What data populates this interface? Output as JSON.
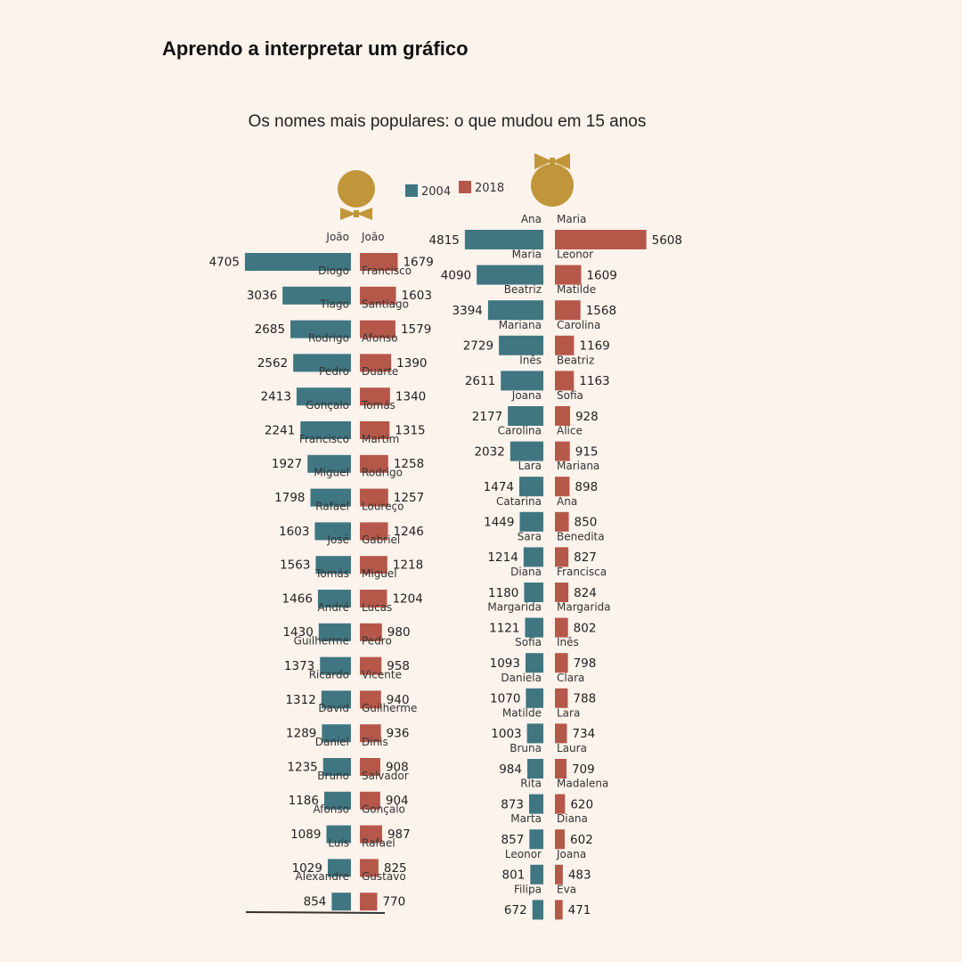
{
  "page": {
    "heading": "Aprendo a interpretar um gráfico",
    "subtitle": "Os nomes mais populares: o que mudou em 15 anos"
  },
  "colors": {
    "series_2004": "#3f7682",
    "series_2018": "#b5584a",
    "icon": "#c1953a",
    "background": "#fcf3ec"
  },
  "icons": {
    "boys": "boy-head-bowtie-icon",
    "girls": "girl-head-bow-icon"
  },
  "chart_data": [
    {
      "type": "bar",
      "orientation": "horizontal-back-to-back",
      "legend": [
        "2004",
        "2018"
      ],
      "legend_position": "top-center",
      "series": [
        {
          "name": "2004",
          "categories": [
            "João",
            "Diogo",
            "Tiago",
            "Rodrigo",
            "Pedro",
            "Gonçalo",
            "Francisco",
            "Miguel",
            "Rafael",
            "José",
            "Tomás",
            "André",
            "Guilherme",
            "Ricardo",
            "David",
            "Daniel",
            "Bruno",
            "Afonso",
            "Luís",
            "Alexandre"
          ],
          "values": [
            4705,
            3036,
            2685,
            2562,
            2413,
            2241,
            1927,
            1798,
            1603,
            1563,
            1466,
            1430,
            1373,
            1312,
            1289,
            1235,
            1186,
            1089,
            1029,
            854
          ]
        },
        {
          "name": "2018",
          "categories": [
            "João",
            "Francisco",
            "Santiago",
            "Afonso",
            "Duarte",
            "Tomás",
            "Martim",
            "Rodrigo",
            "Loureço",
            "Gabriel",
            "Miguel",
            "Lucas",
            "Pedro",
            "Vicente",
            "Guilherme",
            "Dinis",
            "Salvador",
            "Gonçalo",
            "Rafael",
            "Gustavo"
          ],
          "values": [
            1679,
            1603,
            1579,
            1390,
            1340,
            1315,
            1258,
            1257,
            1246,
            1218,
            1204,
            980,
            958,
            940,
            936,
            908,
            904,
            987,
            825,
            770
          ]
        }
      ]
    },
    {
      "type": "bar",
      "orientation": "horizontal-back-to-back",
      "legend": [
        "2004",
        "2018"
      ],
      "legend_position": "top-center",
      "series": [
        {
          "name": "2004",
          "categories": [
            "Ana",
            "Maria",
            "Beatriz",
            "Mariana",
            "Inês",
            "Joana",
            "Carolina",
            "Lara",
            "Catarina",
            "Sara",
            "Diana",
            "Margarida",
            "Sofia",
            "Daniela",
            "Matilde",
            "Bruna",
            "Rita",
            "Marta",
            "Leonor",
            "Filipa"
          ],
          "values": [
            4815,
            4090,
            3394,
            2729,
            2611,
            2177,
            2032,
            1474,
            1449,
            1214,
            1180,
            1121,
            1093,
            1070,
            1003,
            984,
            873,
            857,
            801,
            672
          ]
        },
        {
          "name": "2018",
          "categories": [
            "Maria",
            "Leonor",
            "Matilde",
            "Carolina",
            "Beatriz",
            "Sofia",
            "Alice",
            "Mariana",
            "Ana",
            "Benedita",
            "Francisca",
            "Margarida",
            "Inês",
            "Clara",
            "Lara",
            "Laura",
            "Madalena",
            "Diana",
            "Joana",
            "Eva"
          ],
          "values": [
            5608,
            1609,
            1568,
            1169,
            1163,
            928,
            915,
            898,
            850,
            827,
            824,
            802,
            798,
            788,
            734,
            709,
            620,
            602,
            483,
            471
          ]
        }
      ]
    }
  ]
}
